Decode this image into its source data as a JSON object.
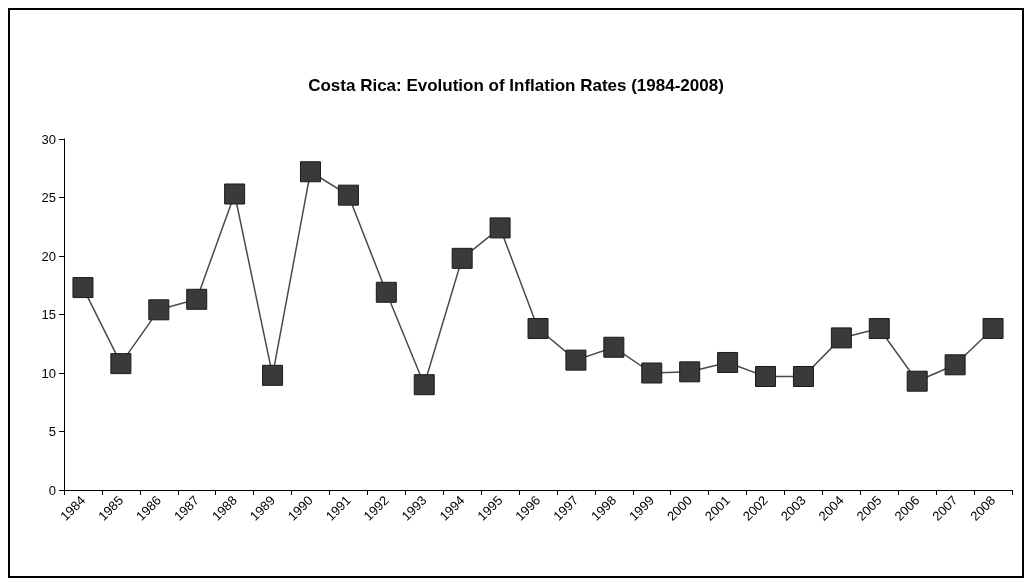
{
  "chart_data": {
    "type": "line",
    "title": "Costa Rica: Evolution of Inflation Rates (1984-2008)",
    "categories": [
      "1984",
      "1985",
      "1986",
      "1987",
      "1988",
      "1989",
      "1990",
      "1991",
      "1992",
      "1993",
      "1994",
      "1995",
      "1996",
      "1997",
      "1998",
      "1999",
      "2000",
      "2001",
      "2002",
      "2003",
      "2004",
      "2005",
      "2006",
      "2007",
      "2008"
    ],
    "series": [
      {
        "color": "#3a3a3a",
        "values": [
          17.3,
          10.8,
          15.4,
          16.3,
          25.3,
          9.8,
          27.2,
          25.2,
          16.9,
          9.0,
          19.8,
          22.4,
          13.8,
          11.1,
          12.2,
          10.0,
          10.1,
          10.9,
          9.7,
          9.7,
          13.0,
          13.8,
          9.3,
          10.7,
          13.8
        ]
      }
    ],
    "ylim": [
      0,
      30
    ],
    "yticks": [
      0,
      5,
      10,
      15,
      20,
      25,
      30
    ],
    "grid": false,
    "marker": "square",
    "line_style": "solid"
  }
}
